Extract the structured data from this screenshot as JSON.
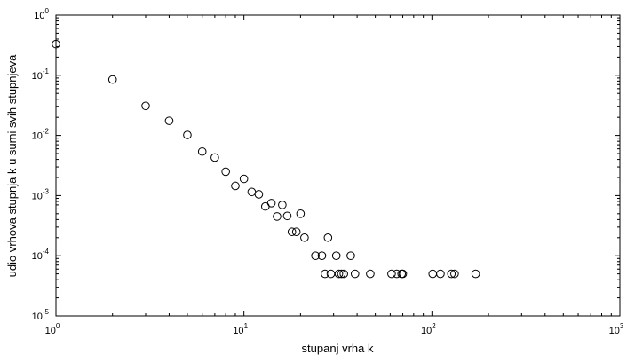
{
  "chart_data": {
    "type": "scatter",
    "xlabel": "stupanj vrha k",
    "ylabel": "udio vrhova stupnja k u sumi svih stupnjeva",
    "x_scale": "log",
    "y_scale": "log",
    "xlim": [
      1,
      1000
    ],
    "ylim": [
      1e-05,
      1
    ],
    "grid": false,
    "marker": "open-circle",
    "x_ticks": [
      {
        "base": "10",
        "exp": "0"
      },
      {
        "base": "10",
        "exp": "1"
      },
      {
        "base": "10",
        "exp": "2"
      },
      {
        "base": "10",
        "exp": "3"
      }
    ],
    "y_ticks": [
      {
        "base": "10",
        "exp": "-5"
      },
      {
        "base": "10",
        "exp": "-4"
      },
      {
        "base": "10",
        "exp": "-3"
      },
      {
        "base": "10",
        "exp": "-2"
      },
      {
        "base": "10",
        "exp": "-1"
      },
      {
        "base": "10",
        "exp": "0"
      }
    ],
    "points": [
      [
        1,
        0.33
      ],
      [
        2,
        0.085
      ],
      [
        3,
        0.031
      ],
      [
        4,
        0.0175
      ],
      [
        5,
        0.0102
      ],
      [
        6,
        0.0054
      ],
      [
        7,
        0.0043
      ],
      [
        8,
        0.0025
      ],
      [
        9,
        0.00145
      ],
      [
        10,
        0.0019
      ],
      [
        11,
        0.00115
      ],
      [
        12,
        0.00105
      ],
      [
        13,
        0.00066
      ],
      [
        14,
        0.00075
      ],
      [
        15,
        0.00045
      ],
      [
        16,
        0.0007
      ],
      [
        17,
        0.00046
      ],
      [
        18,
        0.00025
      ],
      [
        19,
        0.00025
      ],
      [
        20,
        0.0005
      ],
      [
        21,
        0.0002
      ],
      [
        24,
        0.0001
      ],
      [
        26,
        0.0001
      ],
      [
        27,
        5e-05
      ],
      [
        28,
        0.0002
      ],
      [
        29,
        5e-05
      ],
      [
        31,
        0.0001
      ],
      [
        32,
        5e-05
      ],
      [
        33,
        5e-05
      ],
      [
        34,
        5e-05
      ],
      [
        37,
        0.0001
      ],
      [
        39,
        5e-05
      ],
      [
        47,
        5e-05
      ],
      [
        61,
        5e-05
      ],
      [
        65,
        5e-05
      ],
      [
        69,
        5e-05
      ],
      [
        70,
        5e-05
      ],
      [
        101,
        5e-05
      ],
      [
        111,
        5e-05
      ],
      [
        127,
        5e-05
      ],
      [
        132,
        5e-05
      ],
      [
        171,
        5e-05
      ]
    ]
  }
}
